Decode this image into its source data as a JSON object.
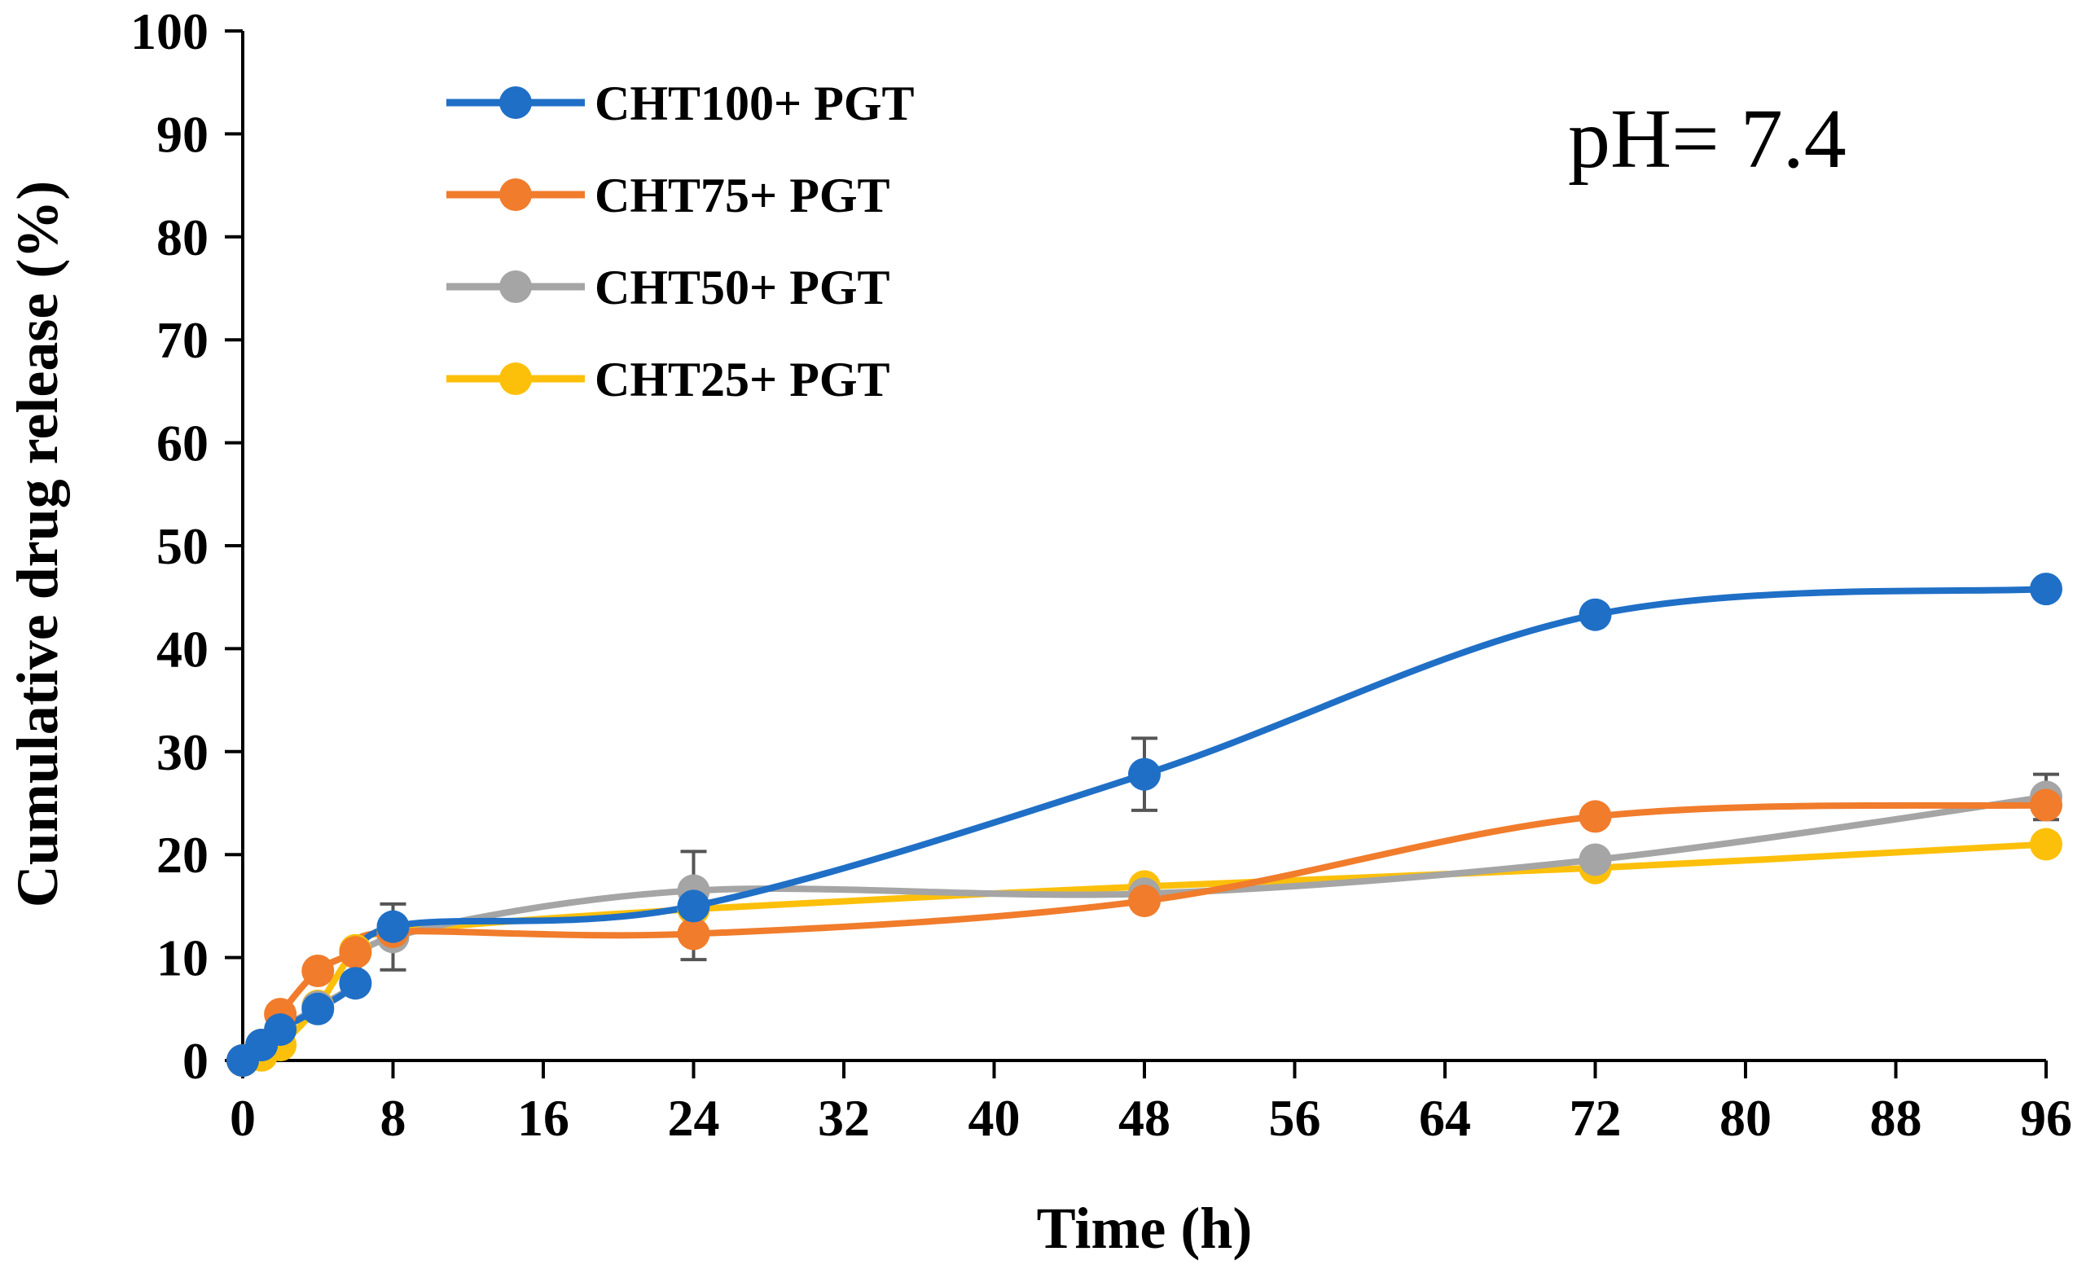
{
  "chart_data": {
    "type": "line",
    "title": "",
    "xlabel": "Time (h)",
    "ylabel": "Cumulative drug release (%)",
    "xlim": [
      0,
      96
    ],
    "ylim": [
      0,
      100
    ],
    "x_ticks": [
      "0",
      "8",
      "16",
      "24",
      "32",
      "40",
      "48",
      "56",
      "64",
      "72",
      "80",
      "88",
      "96"
    ],
    "y_ticks": [
      "0",
      "10",
      "20",
      "30",
      "40",
      "50",
      "60",
      "70",
      "80",
      "90",
      "100"
    ],
    "grid": false,
    "legend_position": "top-left",
    "annotation": "pH= 7.4",
    "series": [
      {
        "name": "CHT100+ PGT",
        "color": "#1f6fc6",
        "x": [
          0,
          1,
          2,
          4,
          6,
          8,
          24,
          48,
          72,
          96
        ],
        "y": [
          0,
          1.5,
          3,
          5,
          7.5,
          13,
          15,
          27.8,
          43.3,
          45.8
        ],
        "error": [
          0,
          0,
          0,
          0,
          0,
          0,
          0,
          3.5,
          0,
          0
        ]
      },
      {
        "name": "CHT75+ PGT",
        "color": "#f07c2c",
        "x": [
          0,
          1,
          2,
          4,
          6,
          8,
          24,
          48,
          72,
          96
        ],
        "y": [
          0,
          1.5,
          4.5,
          8.7,
          10.5,
          12.5,
          12.3,
          15.5,
          23.7,
          24.8
        ],
        "error": [
          0,
          0,
          0,
          0,
          0,
          0,
          2.5,
          0,
          0,
          0
        ]
      },
      {
        "name": "CHT50+ PGT",
        "color": "#a5a5a5",
        "x": [
          0,
          1,
          2,
          4,
          6,
          8,
          24,
          48,
          72,
          96
        ],
        "y": [
          0,
          1.5,
          3,
          5.2,
          7.5,
          12,
          16.5,
          16.2,
          19.5,
          25.6
        ],
        "error": [
          0,
          0,
          0,
          0,
          0,
          3.2,
          3.8,
          0,
          0,
          2.2
        ]
      },
      {
        "name": "CHT25+ PGT",
        "color": "#fcc00b",
        "x": [
          0,
          1,
          2,
          4,
          6,
          8,
          24,
          48,
          72,
          96
        ],
        "y": [
          0,
          0.5,
          1.5,
          5.3,
          10.7,
          12.5,
          14.7,
          16.9,
          18.7,
          21
        ],
        "error": [
          0,
          0,
          0,
          0,
          0,
          0,
          0,
          0,
          0,
          0
        ]
      }
    ]
  }
}
